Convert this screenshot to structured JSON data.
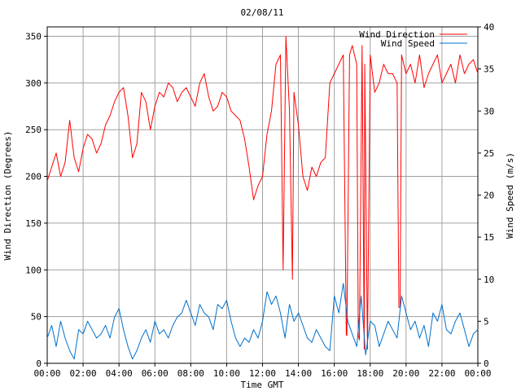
{
  "chart_data": {
    "type": "line",
    "title": "02/08/11",
    "xlabel": "Time GMT",
    "ylabel": "Wind Direction (Degrees)",
    "y2label": "Wind Speed (m/s)",
    "x_ticks": [
      "00:00",
      "02:00",
      "04:00",
      "06:00",
      "08:00",
      "10:00",
      "12:00",
      "14:00",
      "16:00",
      "18:00",
      "20:00",
      "22:00",
      "00:00"
    ],
    "x_unit": "hours GMT",
    "x_range": [
      0,
      24
    ],
    "ylim": [
      0,
      360
    ],
    "y2lim": [
      0,
      40
    ],
    "y_ticks": [
      0,
      50,
      100,
      150,
      200,
      250,
      300,
      350
    ],
    "y2_ticks": [
      0,
      5,
      10,
      15,
      20,
      25,
      30,
      35,
      40
    ],
    "grid": true,
    "legend_position": "top-right",
    "series": [
      {
        "name": "Wind Direction",
        "axis": "left",
        "color": "#ff0000",
        "x": [
          0,
          0.25,
          0.5,
          0.75,
          1,
          1.25,
          1.5,
          1.75,
          2,
          2.25,
          2.5,
          2.75,
          3,
          3.25,
          3.5,
          3.75,
          4,
          4.25,
          4.5,
          4.75,
          5,
          5.25,
          5.5,
          5.75,
          6,
          6.25,
          6.5,
          6.75,
          7,
          7.25,
          7.5,
          7.75,
          8,
          8.25,
          8.5,
          8.75,
          9,
          9.25,
          9.5,
          9.75,
          10,
          10.25,
          10.5,
          10.75,
          11,
          11.25,
          11.5,
          11.75,
          12,
          12.25,
          12.5,
          12.75,
          13,
          13.15,
          13.3,
          13.5,
          13.75,
          14,
          14.25,
          14.5,
          14.75,
          15,
          15.25,
          15.5,
          15.75,
          16,
          16.25,
          16.5,
          16.7,
          16.85,
          17,
          17.25,
          17.4,
          17.55,
          17.7,
          17.85,
          18,
          18.25,
          18.5,
          18.75,
          19,
          19.25,
          19.5,
          19.6,
          19.75,
          20,
          20.25,
          20.5,
          20.75,
          21,
          21.25,
          21.5,
          21.75,
          22,
          22.25,
          22.5,
          22.75,
          23,
          23.25,
          23.5,
          23.75,
          24
        ],
        "values": [
          195,
          210,
          225,
          200,
          215,
          260,
          220,
          205,
          230,
          245,
          240,
          225,
          235,
          255,
          265,
          280,
          290,
          295,
          265,
          220,
          235,
          290,
          280,
          250,
          275,
          290,
          285,
          300,
          295,
          280,
          290,
          295,
          285,
          275,
          300,
          310,
          285,
          270,
          275,
          290,
          285,
          270,
          265,
          260,
          240,
          210,
          175,
          190,
          200,
          245,
          270,
          320,
          330,
          100,
          350,
          270,
          290,
          255,
          200,
          185,
          210,
          200,
          215,
          220,
          300,
          310,
          320,
          330,
          30,
          330,
          340,
          320,
          25,
          340,
          320,
          15,
          330,
          290,
          300,
          320,
          310,
          310,
          300,
          60,
          330,
          310,
          320,
          300,
          330,
          295,
          310,
          320,
          330,
          300,
          310,
          320,
          300,
          330,
          310,
          320,
          325,
          310
        ],
        "peaks": [
          {
            "time": "13:40",
            "value": 90
          },
          {
            "time": "16:40",
            "value": 30
          },
          {
            "time": "17:20",
            "value": 30
          },
          {
            "time": "17:40",
            "value": 15
          },
          {
            "time": "19:40",
            "value": 60
          }
        ]
      },
      {
        "name": "Wind Speed",
        "axis": "right",
        "color": "#0070cc",
        "x": [
          0,
          0.25,
          0.5,
          0.75,
          1,
          1.25,
          1.5,
          1.75,
          2,
          2.25,
          2.5,
          2.75,
          3,
          3.25,
          3.5,
          3.75,
          4,
          4.25,
          4.5,
          4.75,
          5,
          5.25,
          5.5,
          5.75,
          6,
          6.25,
          6.5,
          6.75,
          7,
          7.25,
          7.5,
          7.75,
          8,
          8.25,
          8.5,
          8.75,
          9,
          9.25,
          9.5,
          9.75,
          10,
          10.25,
          10.5,
          10.75,
          11,
          11.25,
          11.5,
          11.75,
          12,
          12.25,
          12.5,
          12.75,
          13,
          13.25,
          13.5,
          13.75,
          14,
          14.25,
          14.5,
          14.75,
          15,
          15.25,
          15.5,
          15.75,
          16,
          16.25,
          16.5,
          16.75,
          17,
          17.25,
          17.5,
          17.75,
          18,
          18.25,
          18.5,
          18.75,
          19,
          19.25,
          19.5,
          19.75,
          20,
          20.25,
          20.5,
          20.75,
          21,
          21.25,
          21.5,
          21.75,
          22,
          22.25,
          22.5,
          22.75,
          23,
          23.25,
          23.5,
          23.75,
          24
        ],
        "values": [
          3,
          4.5,
          2,
          5,
          3,
          1.5,
          0.5,
          4,
          3.5,
          5,
          4,
          3,
          3.5,
          4.5,
          3,
          5.5,
          6.5,
          4,
          2,
          0.5,
          1.5,
          3,
          4,
          2.5,
          5,
          3.5,
          4,
          3,
          4.5,
          5.5,
          6,
          7.5,
          6,
          4.5,
          7,
          6,
          5.5,
          4,
          7,
          6.5,
          7.5,
          5,
          3,
          2,
          3,
          2.5,
          4,
          3,
          5,
          8.5,
          7,
          8,
          6,
          3,
          7,
          5,
          6,
          4.5,
          3,
          2.5,
          4,
          3,
          2,
          1.5,
          8,
          6,
          9.5,
          5,
          3.5,
          2,
          8,
          1,
          5,
          4.5,
          2,
          3.5,
          5,
          4,
          3,
          8,
          6,
          4,
          5,
          3,
          4.5,
          2,
          6,
          5,
          7,
          4,
          3.5,
          5,
          6,
          4,
          2,
          3.5,
          4
        ]
      }
    ]
  }
}
